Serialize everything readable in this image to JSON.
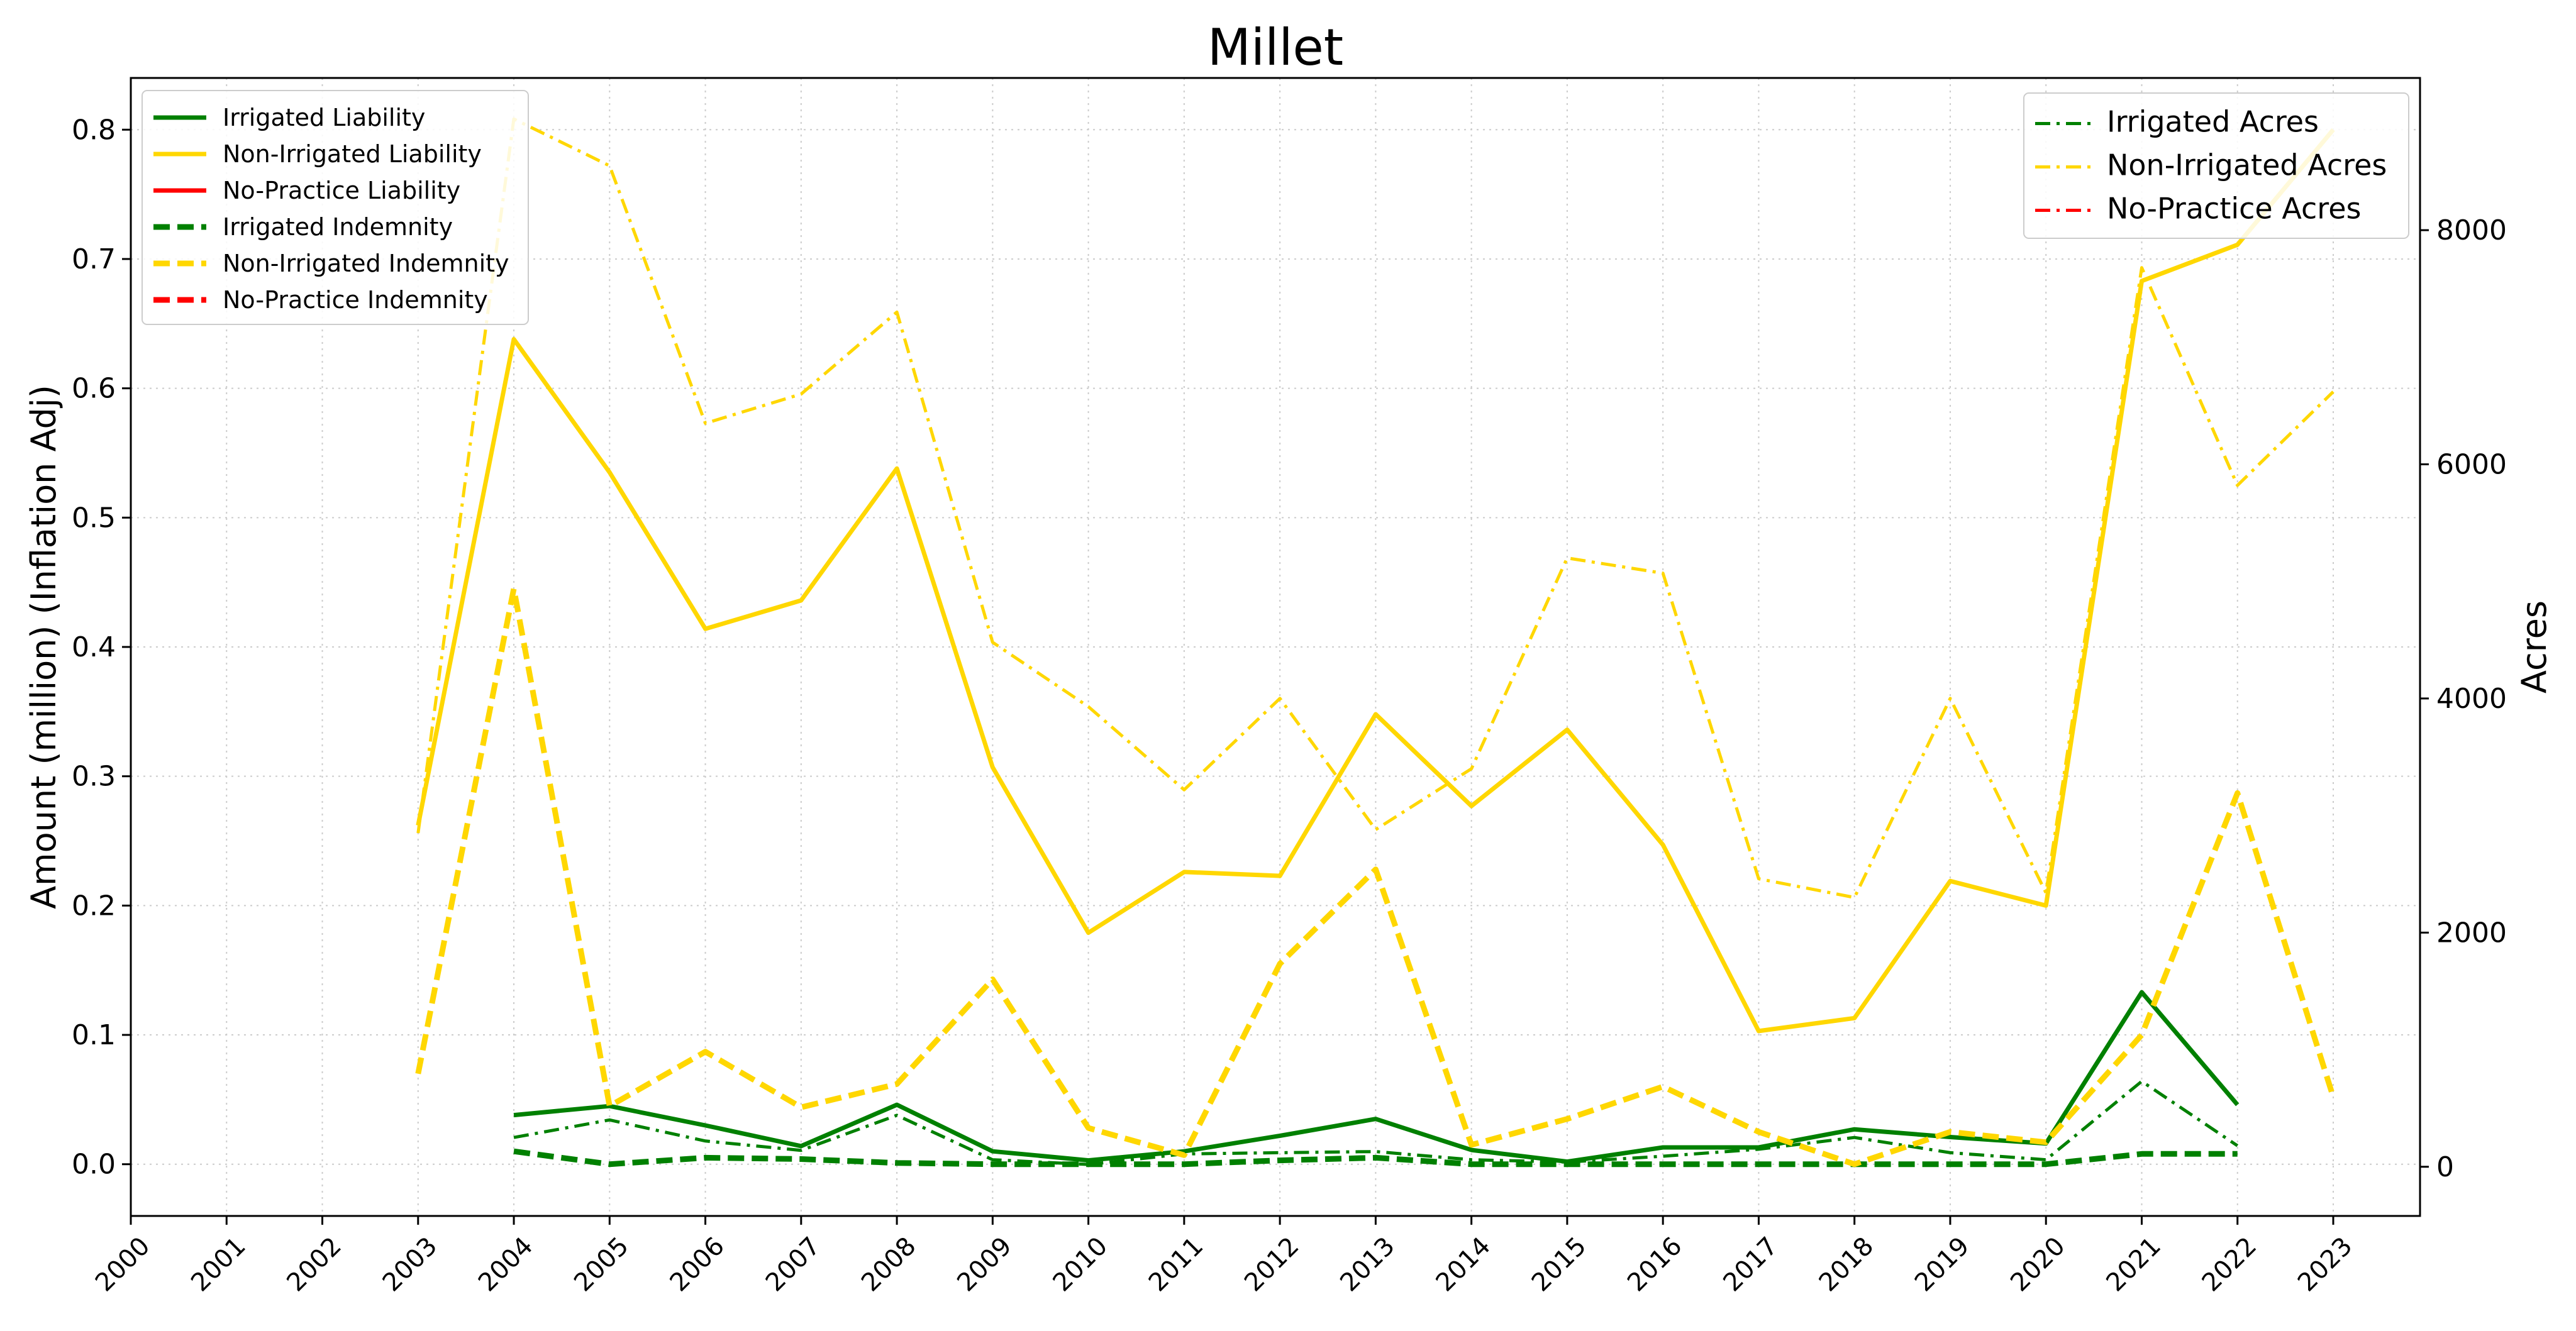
{
  "chart_data": {
    "type": "line",
    "title": "Millet",
    "ylabel": "Amount (million) (Inflation Adj)",
    "y2label": "Acres",
    "grid": true,
    "legend_left_position": "upper-left",
    "legend_right_position": "upper-right",
    "xlim": [
      2000,
      2023
    ],
    "ylim": [
      -0.04,
      0.84
    ],
    "y2lim": [
      -420,
      9300
    ],
    "x_ticks": [
      2000,
      2001,
      2002,
      2003,
      2004,
      2005,
      2006,
      2007,
      2008,
      2009,
      2010,
      2011,
      2012,
      2013,
      2014,
      2015,
      2016,
      2017,
      2018,
      2019,
      2020,
      2021,
      2022,
      2023
    ],
    "y_ticks": [
      "0.0",
      "0.1",
      "0.2",
      "0.3",
      "0.4",
      "0.5",
      "0.6",
      "0.7",
      "0.8"
    ],
    "y2_ticks": [
      "0",
      "2000",
      "4000",
      "6000",
      "8000"
    ],
    "series": [
      {
        "name": "Irrigated Liability",
        "axis": "left",
        "color": "#008000",
        "style": "solid",
        "x": [
          2004,
          2005,
          2006,
          2007,
          2008,
          2009,
          2010,
          2011,
          2012,
          2013,
          2014,
          2015,
          2016,
          2017,
          2018,
          2019,
          2020,
          2021,
          2022
        ],
        "y": [
          0.038,
          0.045,
          0.03,
          0.014,
          0.046,
          0.01,
          0.003,
          0.01,
          0.022,
          0.035,
          0.011,
          0.002,
          0.013,
          0.013,
          0.027,
          0.021,
          0.016,
          0.133,
          0.046
        ]
      },
      {
        "name": "Non-Irrigated Liability",
        "axis": "left",
        "color": "#FFD700",
        "style": "solid",
        "x": [
          2003,
          2004,
          2005,
          2006,
          2007,
          2008,
          2009,
          2010,
          2011,
          2012,
          2013,
          2014,
          2015,
          2016,
          2017,
          2018,
          2019,
          2020,
          2021,
          2022,
          2023
        ],
        "y": [
          0.262,
          0.638,
          0.535,
          0.414,
          0.436,
          0.538,
          0.307,
          0.179,
          0.226,
          0.223,
          0.348,
          0.277,
          0.336,
          0.247,
          0.103,
          0.113,
          0.219,
          0.2,
          0.683,
          0.711,
          0.8
        ]
      },
      {
        "name": "No-Practice Liability",
        "axis": "left",
        "color": "#FF0000",
        "style": "solid",
        "x": [],
        "y": []
      },
      {
        "name": "Irrigated Indemnity",
        "axis": "left",
        "color": "#008000",
        "style": "dashed",
        "x": [
          2004,
          2005,
          2006,
          2007,
          2008,
          2009,
          2010,
          2011,
          2012,
          2013,
          2014,
          2015,
          2016,
          2017,
          2018,
          2019,
          2020,
          2021,
          2022
        ],
        "y": [
          0.01,
          0.0,
          0.005,
          0.004,
          0.001,
          0.0,
          0.0,
          0.0,
          0.003,
          0.005,
          0.0,
          0.0,
          0.0,
          0.0,
          0.0,
          0.0,
          0.0,
          0.008,
          0.008
        ]
      },
      {
        "name": "Non-Irrigated Indemnity",
        "axis": "left",
        "color": "#FFD700",
        "style": "dashed",
        "x": [
          2003,
          2004,
          2005,
          2006,
          2007,
          2008,
          2009,
          2010,
          2011,
          2012,
          2013,
          2014,
          2015,
          2016,
          2017,
          2018,
          2019,
          2020,
          2021,
          2022,
          2023
        ],
        "y": [
          0.07,
          0.445,
          0.045,
          0.087,
          0.044,
          0.062,
          0.143,
          0.028,
          0.007,
          0.155,
          0.228,
          0.015,
          0.035,
          0.06,
          0.025,
          0.0,
          0.025,
          0.017,
          0.1,
          0.287,
          0.052
        ]
      },
      {
        "name": "No-Practice Indemnity",
        "axis": "left",
        "color": "#FF0000",
        "style": "dashed",
        "x": [],
        "y": []
      },
      {
        "name": "Irrigated Acres",
        "axis": "right",
        "color": "#008000",
        "style": "dashdot",
        "x": [
          2004,
          2005,
          2006,
          2007,
          2008,
          2009,
          2010,
          2011,
          2012,
          2013,
          2014,
          2015,
          2016,
          2017,
          2018,
          2019,
          2020,
          2021,
          2022
        ],
        "y": [
          250,
          400,
          220,
          140,
          440,
          60,
          20,
          110,
          120,
          130,
          60,
          40,
          90,
          150,
          250,
          120,
          60,
          730,
          180
        ]
      },
      {
        "name": "Non-Irrigated Acres",
        "axis": "right",
        "color": "#FFD700",
        "style": "dashdot",
        "x": [
          2003,
          2004,
          2005,
          2006,
          2007,
          2008,
          2009,
          2010,
          2011,
          2012,
          2013,
          2014,
          2015,
          2016,
          2017,
          2018,
          2019,
          2020,
          2021,
          2022,
          2023
        ],
        "y": [
          2850,
          8950,
          8550,
          6350,
          6600,
          7300,
          4480,
          3930,
          3220,
          4000,
          2880,
          3400,
          5200,
          5070,
          2460,
          2300,
          4000,
          2340,
          7680,
          5820,
          6620
        ]
      },
      {
        "name": "No-Practice Acres",
        "axis": "right",
        "color": "#FF0000",
        "style": "dashdot",
        "x": [],
        "y": []
      }
    ],
    "legend_left": [
      "Irrigated Liability",
      "Non-Irrigated Liability",
      "No-Practice Liability",
      "Irrigated Indemnity",
      "Non-Irrigated Indemnity",
      "No-Practice Indemnity"
    ],
    "legend_right": [
      "Irrigated Acres",
      "Non-Irrigated Acres",
      "No-Practice Acres"
    ]
  }
}
